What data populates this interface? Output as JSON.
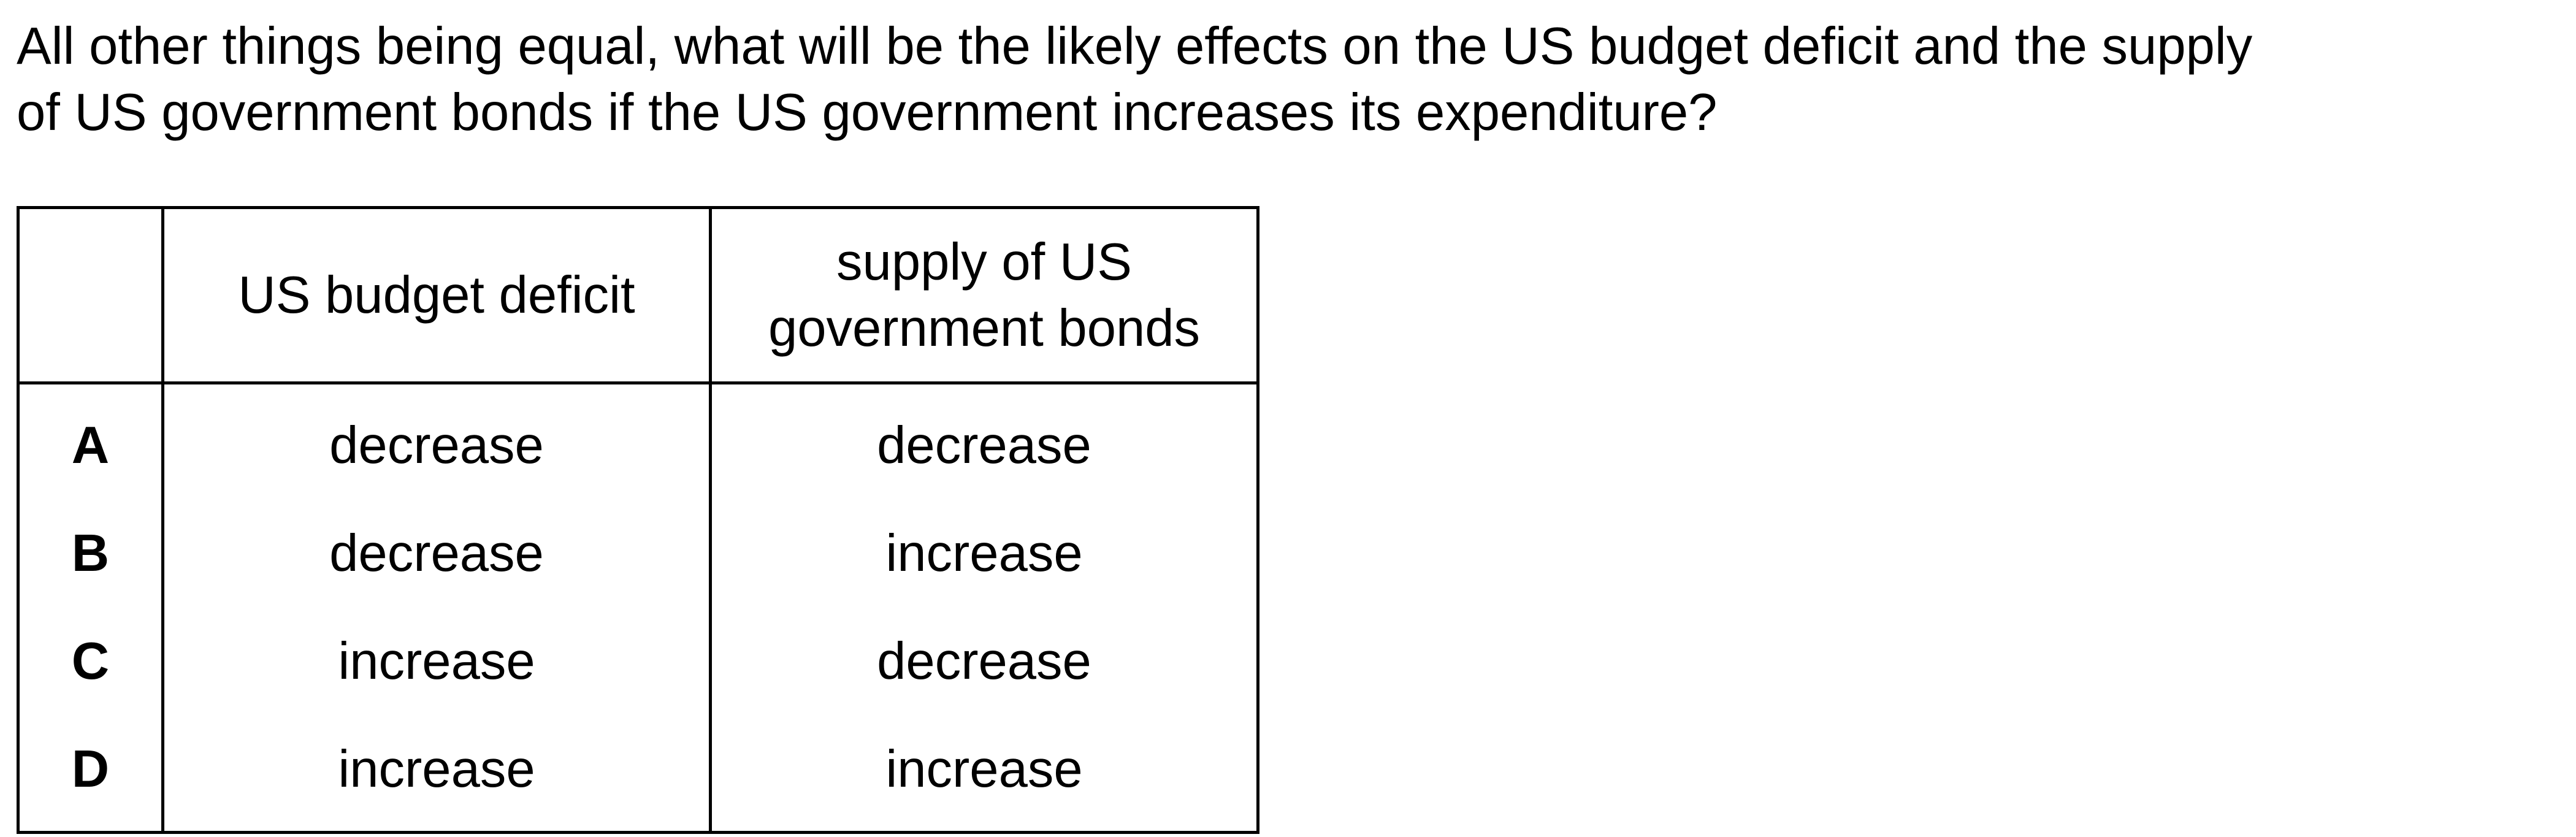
{
  "question": {
    "line1": "All other things being equal, what will be the likely effects on the US budget deficit and the supply",
    "line2": "of US government bonds if the US government increases its expenditure?"
  },
  "table": {
    "headers": {
      "key": "",
      "col1": "US budget deficit",
      "col2_line1": "supply of US",
      "col2_line2": "government bonds"
    },
    "rows": [
      {
        "key": "A",
        "deficit": "decrease",
        "bonds": "decrease"
      },
      {
        "key": "B",
        "deficit": "decrease",
        "bonds": "increase"
      },
      {
        "key": "C",
        "deficit": "increase",
        "bonds": "decrease"
      },
      {
        "key": "D",
        "deficit": "increase",
        "bonds": "increase"
      }
    ]
  }
}
